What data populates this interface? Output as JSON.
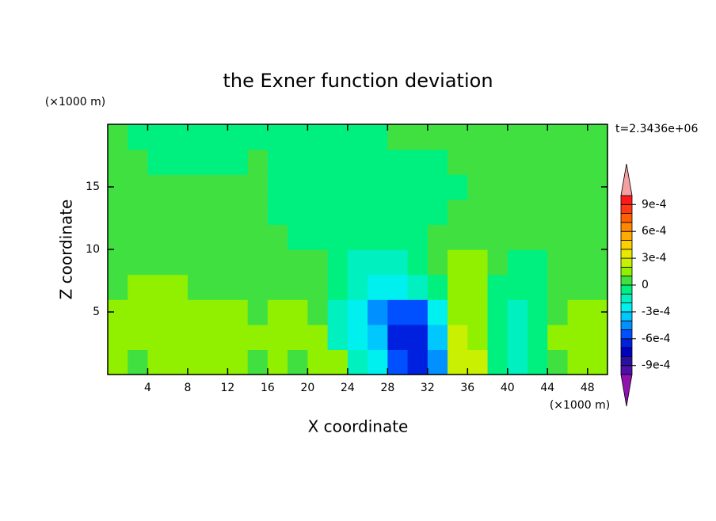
{
  "chart_data": {
    "type": "contourf",
    "title": "the Exner function deviation",
    "x_label": "X coordinate",
    "y_label": "Z coordinate",
    "x_unit": "(×1000 m)",
    "y_unit": "(×1000 m)",
    "annotation": "t=2.3436e+06",
    "xlim": [
      0,
      50
    ],
    "ylim": [
      0,
      20
    ],
    "xticks": [
      4,
      8,
      12,
      16,
      20,
      24,
      28,
      32,
      36,
      40,
      44,
      48
    ],
    "yticks": [
      5,
      10,
      15
    ],
    "x": [
      1,
      3,
      5,
      7,
      9,
      11,
      13,
      15,
      17,
      19,
      21,
      23,
      25,
      27,
      29,
      31,
      33,
      35,
      37,
      39,
      41,
      43,
      45,
      47,
      49
    ],
    "y": [
      1,
      3,
      5,
      7,
      9,
      11,
      13,
      15,
      17,
      19
    ],
    "z": [
      [
        0.00015,
        5e-05,
        0.00015,
        0.00015,
        0.00015,
        0.00015,
        0.00015,
        5e-05,
        0.00015,
        5e-05,
        0.00015,
        0.00015,
        -0.00015,
        -0.00025,
        -0.00055,
        -0.00065,
        -0.00045,
        0.00025,
        0.00025,
        -5e-05,
        -0.00015,
        -5e-05,
        5e-05,
        0.00015,
        0.00015
      ],
      [
        0.00015,
        0.00015,
        0.00015,
        0.00015,
        0.00015,
        0.00015,
        0.00015,
        0.00015,
        0.00015,
        0.00015,
        0.00015,
        -0.00015,
        -0.00025,
        -0.00035,
        -0.00065,
        -0.00065,
        -0.00035,
        0.00025,
        0.00015,
        -5e-05,
        -0.00015,
        -5e-05,
        0.00015,
        0.00015,
        0.00015
      ],
      [
        0.00015,
        0.00015,
        0.00015,
        0.00015,
        0.00015,
        0.00015,
        0.00015,
        5e-05,
        0.00015,
        0.00015,
        5e-05,
        -0.00015,
        -0.00025,
        -0.00045,
        -0.00055,
        -0.00055,
        -0.00025,
        0.00015,
        0.00015,
        -5e-05,
        -0.00015,
        -5e-05,
        5e-05,
        0.00015,
        0.00015
      ],
      [
        5e-05,
        0.00015,
        0.00015,
        0.00015,
        5e-05,
        5e-05,
        5e-05,
        5e-05,
        5e-05,
        5e-05,
        5e-05,
        -5e-05,
        -0.00015,
        -0.00025,
        -0.00025,
        -0.00015,
        -5e-05,
        0.00015,
        0.00015,
        -5e-05,
        -5e-05,
        -5e-05,
        5e-05,
        5e-05,
        5e-05
      ],
      [
        5e-05,
        5e-05,
        5e-05,
        5e-05,
        5e-05,
        5e-05,
        5e-05,
        5e-05,
        5e-05,
        5e-05,
        5e-05,
        -5e-05,
        -0.00015,
        -0.00015,
        -0.00015,
        -5e-05,
        5e-05,
        0.00015,
        0.00015,
        5e-05,
        -5e-05,
        -5e-05,
        5e-05,
        5e-05,
        5e-05
      ],
      [
        5e-05,
        5e-05,
        5e-05,
        5e-05,
        5e-05,
        5e-05,
        5e-05,
        5e-05,
        5e-05,
        -5e-05,
        -5e-05,
        -5e-05,
        -5e-05,
        -5e-05,
        -5e-05,
        -5e-05,
        5e-05,
        5e-05,
        5e-05,
        5e-05,
        5e-05,
        5e-05,
        5e-05,
        5e-05,
        5e-05
      ],
      [
        5e-05,
        5e-05,
        5e-05,
        5e-05,
        5e-05,
        5e-05,
        5e-05,
        5e-05,
        -5e-05,
        -5e-05,
        -5e-05,
        -5e-05,
        -5e-05,
        -5e-05,
        -5e-05,
        -5e-05,
        -5e-05,
        5e-05,
        5e-05,
        5e-05,
        5e-05,
        5e-05,
        5e-05,
        5e-05,
        5e-05
      ],
      [
        5e-05,
        5e-05,
        5e-05,
        5e-05,
        5e-05,
        5e-05,
        5e-05,
        5e-05,
        -5e-05,
        -5e-05,
        -5e-05,
        -5e-05,
        -5e-05,
        -5e-05,
        -5e-05,
        -5e-05,
        -5e-05,
        -5e-05,
        5e-05,
        5e-05,
        5e-05,
        5e-05,
        5e-05,
        5e-05,
        5e-05
      ],
      [
        5e-05,
        5e-05,
        -5e-05,
        -5e-05,
        -5e-05,
        -5e-05,
        -5e-05,
        5e-05,
        -5e-05,
        -5e-05,
        -5e-05,
        -5e-05,
        -5e-05,
        -5e-05,
        -5e-05,
        -5e-05,
        -5e-05,
        5e-05,
        5e-05,
        5e-05,
        5e-05,
        5e-05,
        5e-05,
        5e-05,
        5e-05
      ],
      [
        5e-05,
        -5e-05,
        -5e-05,
        -5e-05,
        -5e-05,
        -5e-05,
        -5e-05,
        -5e-05,
        -5e-05,
        -5e-05,
        -5e-05,
        -5e-05,
        -5e-05,
        -5e-05,
        5e-05,
        5e-05,
        5e-05,
        5e-05,
        5e-05,
        5e-05,
        5e-05,
        5e-05,
        5e-05,
        5e-05,
        5e-05
      ]
    ],
    "levels": [
      -0.001,
      -0.0009,
      -0.0008,
      -0.0007,
      -0.0006,
      -0.0005,
      -0.0004,
      -0.0003,
      -0.0002,
      -0.0001,
      0,
      0.0001,
      0.0002,
      0.0003,
      0.0004,
      0.0005,
      0.0006,
      0.0007,
      0.0008,
      0.0009,
      0.001
    ],
    "colors": [
      "#4a10a8",
      "#2a10a0",
      "#0000c0",
      "#0020e0",
      "#0050ff",
      "#0090ff",
      "#00c8ff",
      "#00f0f0",
      "#00f0c0",
      "#00f080",
      "#40e040",
      "#90f000",
      "#c8f000",
      "#e8e800",
      "#ffd000",
      "#ffaa00",
      "#ff8800",
      "#ff6000",
      "#ff3a10",
      "#ff1a1a"
    ],
    "under_color": "#9010b0",
    "over_color": "#f4a0a0",
    "colorbar_ticks": [
      {
        "value": 0.0009,
        "label": "9e-4"
      },
      {
        "value": 0.0006,
        "label": "6e-4"
      },
      {
        "value": 0.0003,
        "label": "3e-4"
      },
      0,
      {
        "value": -0.0003,
        "label": "-3e-4"
      },
      {
        "value": -0.0006,
        "label": "-6e-4"
      },
      {
        "value": -0.0009,
        "label": "-9e-4"
      }
    ]
  }
}
